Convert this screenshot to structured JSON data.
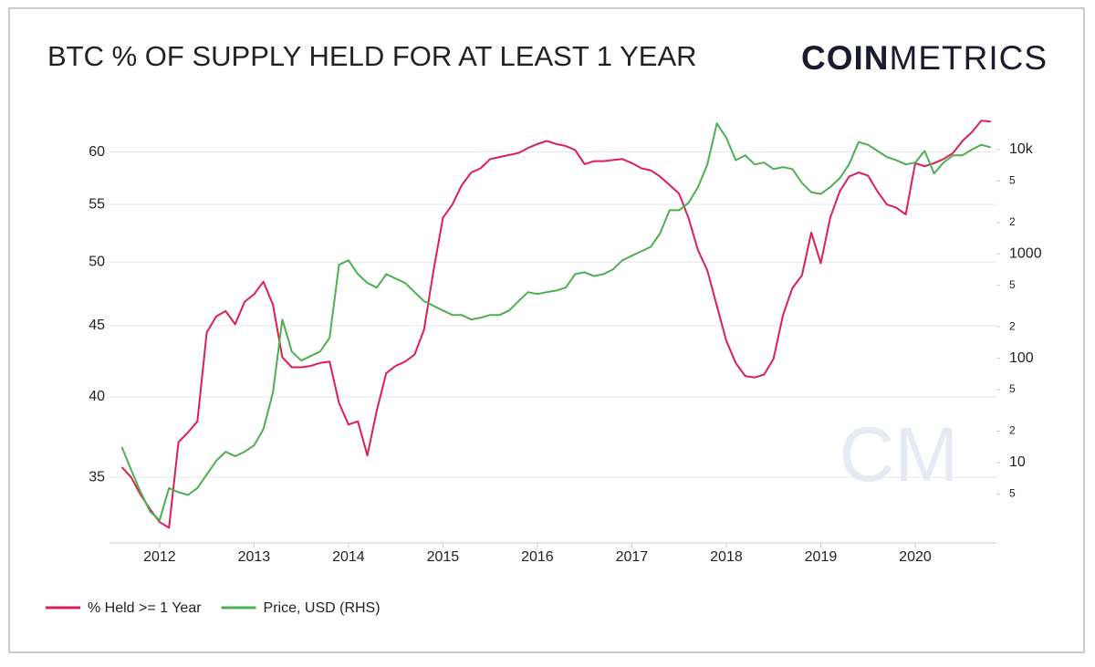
{
  "chart_data": {
    "type": "line",
    "title": "BTC % OF SUPPLY HELD FOR AT LEAST 1 YEAR",
    "logo_bold": "COIN",
    "logo_light": "METRICS",
    "watermark": "CM",
    "x": [
      2011.6,
      2011.7,
      2011.8,
      2011.9,
      2012.0,
      2012.1,
      2012.2,
      2012.3,
      2012.4,
      2012.5,
      2012.6,
      2012.7,
      2012.8,
      2012.9,
      2013.0,
      2013.1,
      2013.2,
      2013.3,
      2013.4,
      2013.5,
      2013.6,
      2013.7,
      2013.8,
      2013.9,
      2014.0,
      2014.1,
      2014.2,
      2014.3,
      2014.4,
      2014.5,
      2014.6,
      2014.7,
      2014.8,
      2014.9,
      2015.0,
      2015.1,
      2015.2,
      2015.3,
      2015.4,
      2015.5,
      2015.6,
      2015.7,
      2015.8,
      2015.9,
      2016.0,
      2016.1,
      2016.2,
      2016.3,
      2016.4,
      2016.5,
      2016.6,
      2016.7,
      2016.8,
      2016.9,
      2017.0,
      2017.1,
      2017.2,
      2017.3,
      2017.4,
      2017.5,
      2017.6,
      2017.7,
      2017.8,
      2017.9,
      2018.0,
      2018.1,
      2018.2,
      2018.3,
      2018.4,
      2018.5,
      2018.6,
      2018.7,
      2018.8,
      2018.9,
      2019.0,
      2019.1,
      2019.2,
      2019.3,
      2019.4,
      2019.5,
      2019.6,
      2019.7,
      2019.8,
      2019.9,
      2020.0,
      2020.1,
      2020.2,
      2020.3,
      2020.4,
      2020.5,
      2020.6,
      2020.7,
      2020.8
    ],
    "xlim": [
      2011.47,
      2020.86
    ],
    "xticks": [
      2012,
      2013,
      2014,
      2015,
      2016,
      2017,
      2018,
      2019,
      2020
    ],
    "ylim": [
      31.4,
      63.6
    ],
    "ylog": true,
    "yticks": [
      35,
      40,
      45,
      50,
      55,
      60
    ],
    "y2lim": [
      1.7,
      20600
    ],
    "y2log": true,
    "y2ticks": [
      {
        "value": 5,
        "label": "5"
      },
      10,
      {
        "value": 20,
        "label": "2"
      },
      {
        "value": 50,
        "label": "5"
      },
      100,
      {
        "value": 200,
        "label": "2"
      },
      {
        "value": 500,
        "label": "5"
      },
      1000,
      {
        "value": 2000,
        "label": "2"
      },
      {
        "value": 5000,
        "label": "5"
      },
      {
        "value": 10000,
        "label": "10k"
      }
    ],
    "grid": true,
    "legend": "bottom-left",
    "series": [
      {
        "name": "% Held >= 1 Year",
        "color": "#dc1f54",
        "values": [
          35.6,
          35.0,
          34.0,
          33.2,
          32.5,
          32.2,
          37.1,
          37.7,
          38.4,
          44.5,
          45.7,
          46.1,
          45.1,
          46.8,
          47.4,
          48.4,
          46.6,
          42.7,
          42.0,
          42.0,
          42.1,
          42.3,
          42.4,
          39.6,
          38.2,
          38.4,
          36.3,
          39.1,
          41.6,
          42.1,
          42.4,
          42.9,
          44.7,
          49.3,
          53.8,
          55.0,
          56.8,
          58.0,
          58.4,
          59.3,
          59.5,
          59.7,
          59.9,
          60.4,
          60.8,
          61.1,
          60.8,
          60.6,
          60.2,
          58.8,
          59.1,
          59.1,
          59.2,
          59.3,
          58.9,
          58.4,
          58.2,
          57.6,
          56.8,
          56.0,
          53.8,
          51.0,
          49.3,
          46.5,
          43.9,
          42.3,
          41.4,
          41.3,
          41.5,
          42.6,
          45.8,
          47.9,
          48.9,
          52.5,
          49.9,
          53.8,
          56.2,
          57.6,
          58.0,
          57.7,
          56.2,
          55.0,
          54.7,
          54.1,
          58.9,
          58.6,
          58.9,
          59.3,
          59.9,
          61.1,
          62.0,
          63.2,
          63.1
        ]
      },
      {
        "name": "Price, USD (RHS)",
        "color": "#4cb050",
        "axis": "y2",
        "values": [
          14.1,
          8.5,
          5.2,
          3.4,
          2.8,
          5.7,
          5.2,
          4.9,
          5.7,
          7.7,
          10.4,
          12.7,
          11.5,
          12.7,
          14.6,
          21,
          47,
          235,
          116,
          95,
          105,
          116,
          157,
          786,
          867,
          640,
          527,
          475,
          640,
          580,
          527,
          430,
          352,
          318,
          287,
          260,
          260,
          235,
          245,
          260,
          260,
          287,
          352,
          430,
          413,
          430,
          446,
          475,
          640,
          666,
          613,
          640,
          710,
          867,
          960,
          1060,
          1170,
          1580,
          2620,
          2620,
          3080,
          4360,
          7200,
          17800,
          13000,
          7900,
          8800,
          7200,
          7500,
          6500,
          6800,
          6500,
          4800,
          3900,
          3750,
          4360,
          5300,
          7200,
          11800,
          11100,
          9700,
          8500,
          7900,
          7200,
          7500,
          9700,
          5900,
          7500,
          8800,
          8800,
          10000,
          11100,
          10500
        ]
      }
    ]
  }
}
